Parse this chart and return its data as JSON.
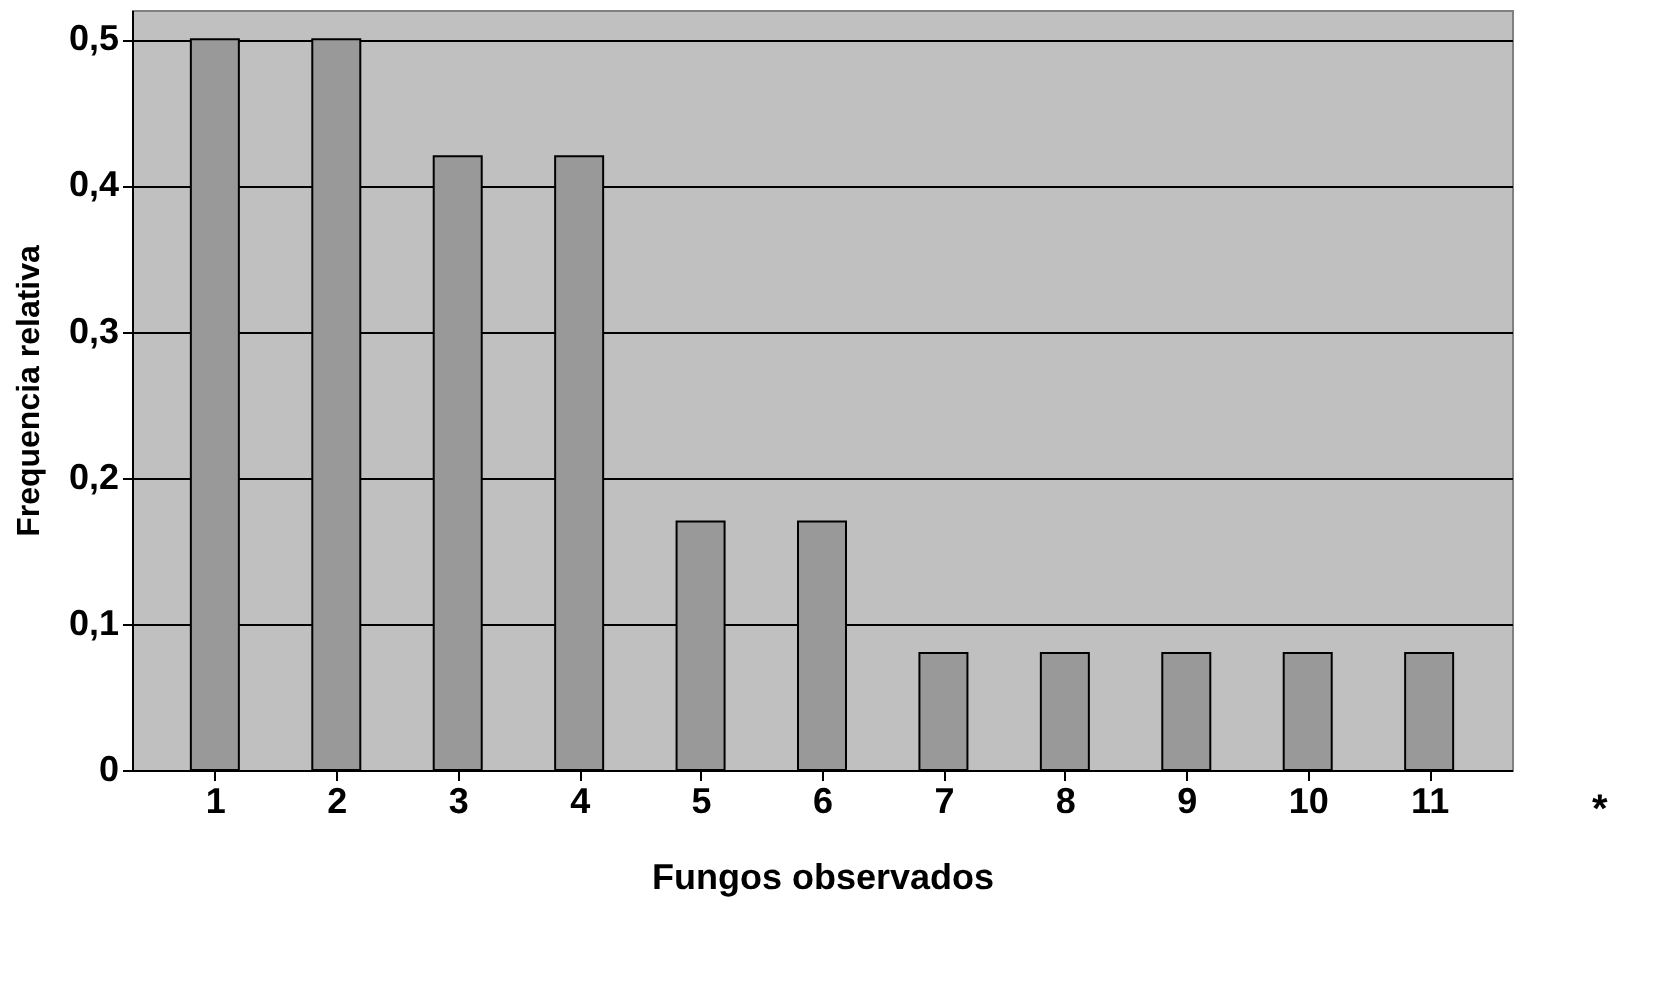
{
  "chart_data": {
    "type": "bar",
    "xlabel": "Fungos observados",
    "ylabel": "Frequencia relativa",
    "categories": [
      "1",
      "2",
      "3",
      "4",
      "5",
      "6",
      "7",
      "8",
      "9",
      "10",
      "11"
    ],
    "values": [
      0.5,
      0.5,
      0.42,
      0.42,
      0.17,
      0.17,
      0.08,
      0.08,
      0.08,
      0.08,
      0.08
    ],
    "color": "#999999",
    "ylim": [
      0,
      0.52
    ],
    "yticks": [
      0,
      {
        "value": 0.1,
        "label": "0,1"
      },
      {
        "value": 0.2,
        "label": "0,2"
      },
      {
        "value": 0.3,
        "label": "0,3"
      },
      {
        "value": 0.4,
        "label": "0,4"
      },
      {
        "value": 0.5,
        "label": "0,5"
      }
    ],
    "grid": "y",
    "annotations": [
      "*"
    ]
  }
}
